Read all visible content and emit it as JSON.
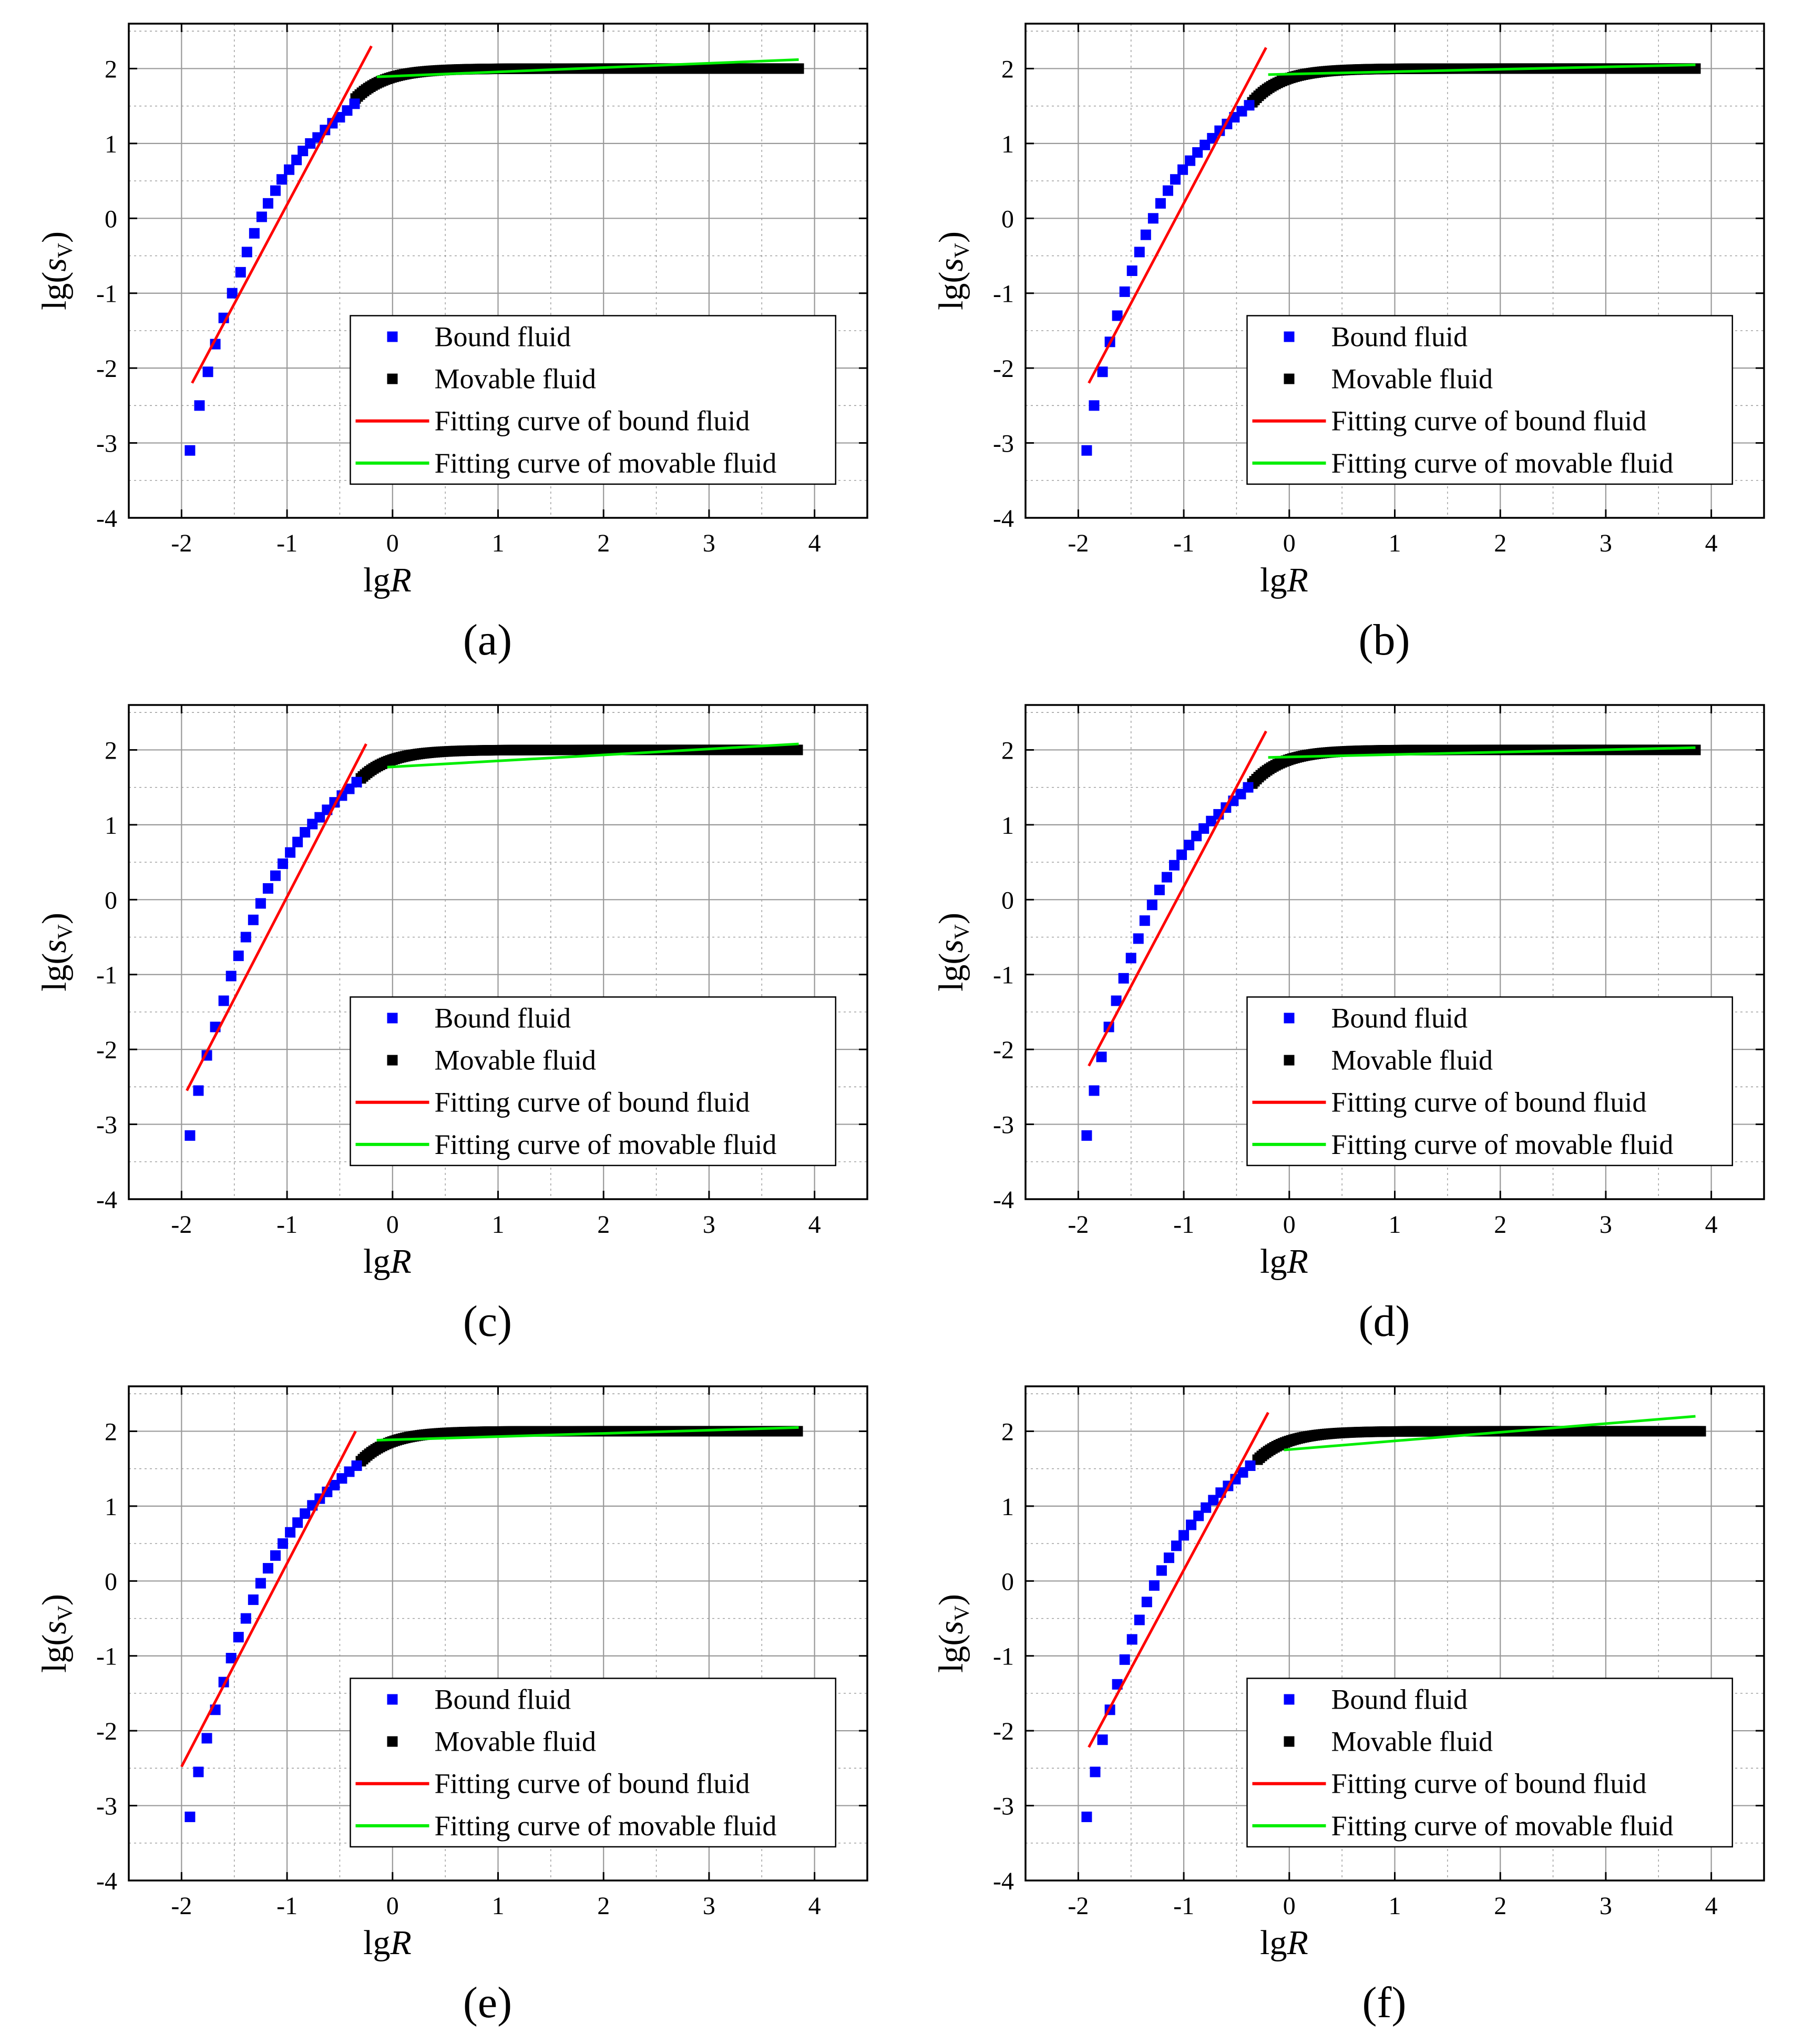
{
  "legend_labels": {
    "bound": "Bound fluid",
    "movable": "Movable fluid",
    "fit_bound": "Fitting curve of bound fluid",
    "fit_movable": "Fitting curve of movable fluid"
  },
  "axis_text": {
    "xlabel_main": "lg",
    "xlabel_ital": "R",
    "ylabel_main": "lg(",
    "ylabel_ital": "s",
    "ylabel_sub": "V",
    "ylabel_close": ")"
  },
  "colors": {
    "bound": "#0000ff",
    "movable": "#000000",
    "fit_bound": "#ff0000",
    "fit_movable": "#00ee00",
    "grid": "#999999",
    "axis": "#000000"
  },
  "chart_data": [
    {
      "type": "scatter",
      "caption": "(a)",
      "xlabel": "lgR",
      "ylabel": "lg(sV)",
      "xlim": [
        -2.5,
        4.5
      ],
      "ylim": [
        -4,
        2.6
      ],
      "xticks": [
        -2,
        -1,
        0,
        1,
        2,
        3,
        4
      ],
      "yticks": [
        -4,
        -3,
        -2,
        -1,
        0,
        1,
        2
      ],
      "grid": true,
      "legend_location": "center-right",
      "series": [
        {
          "name": "Bound fluid",
          "marker": "square",
          "points": [
            [
              -1.92,
              -3.1
            ],
            [
              -1.83,
              -2.5
            ],
            [
              -1.75,
              -2.05
            ],
            [
              -1.68,
              -1.68
            ],
            [
              -1.6,
              -1.33
            ],
            [
              -1.52,
              -1.0
            ],
            [
              -1.44,
              -0.72
            ],
            [
              -1.38,
              -0.45
            ],
            [
              -1.31,
              -0.2
            ],
            [
              -1.24,
              0.02
            ],
            [
              -1.18,
              0.2
            ],
            [
              -1.11,
              0.37
            ],
            [
              -1.05,
              0.52
            ],
            [
              -0.98,
              0.65
            ],
            [
              -0.91,
              0.78
            ],
            [
              -0.85,
              0.9
            ],
            [
              -0.78,
              1.0
            ],
            [
              -0.71,
              1.08
            ],
            [
              -0.64,
              1.18
            ],
            [
              -0.57,
              1.27
            ],
            [
              -0.5,
              1.35
            ],
            [
              -0.43,
              1.44
            ],
            [
              -0.36,
              1.53
            ]
          ]
        },
        {
          "name": "Movable fluid",
          "marker": "square",
          "x_range": [
            -0.35,
            3.85
          ],
          "y_start": 1.6,
          "y_plateau": 2.0
        },
        {
          "name": "Fitting curve of bound fluid",
          "line": [
            [
              -1.9,
              -2.2
            ],
            [
              -0.2,
              2.3
            ]
          ]
        },
        {
          "name": "Fitting curve of movable fluid",
          "line": [
            [
              -0.15,
              1.89
            ],
            [
              3.85,
              2.12
            ]
          ]
        }
      ]
    },
    {
      "type": "scatter",
      "caption": "(b)",
      "xlabel": "lgR",
      "ylabel": "lg(sV)",
      "xlim": [
        -2.5,
        4.5
      ],
      "ylim": [
        -4,
        2.6
      ],
      "xticks": [
        -2,
        -1,
        0,
        1,
        2,
        3,
        4
      ],
      "yticks": [
        -4,
        -3,
        -2,
        -1,
        0,
        1,
        2
      ],
      "grid": true,
      "legend_location": "center-right",
      "series": [
        {
          "name": "Bound fluid",
          "marker": "square",
          "points": [
            [
              -1.92,
              -3.1
            ],
            [
              -1.85,
              -2.5
            ],
            [
              -1.77,
              -2.05
            ],
            [
              -1.7,
              -1.65
            ],
            [
              -1.63,
              -1.3
            ],
            [
              -1.56,
              -0.98
            ],
            [
              -1.49,
              -0.7
            ],
            [
              -1.42,
              -0.45
            ],
            [
              -1.36,
              -0.22
            ],
            [
              -1.29,
              0.0
            ],
            [
              -1.22,
              0.2
            ],
            [
              -1.15,
              0.37
            ],
            [
              -1.08,
              0.52
            ],
            [
              -1.01,
              0.65
            ],
            [
              -0.94,
              0.77
            ],
            [
              -0.87,
              0.88
            ],
            [
              -0.8,
              0.98
            ],
            [
              -0.73,
              1.07
            ],
            [
              -0.66,
              1.17
            ],
            [
              -0.59,
              1.26
            ],
            [
              -0.52,
              1.35
            ],
            [
              -0.45,
              1.43
            ],
            [
              -0.38,
              1.51
            ]
          ]
        },
        {
          "name": "Movable fluid",
          "marker": "square",
          "x_range": [
            -0.35,
            3.85
          ],
          "y_start": 1.55,
          "y_plateau": 2.0
        },
        {
          "name": "Fitting curve of bound fluid",
          "line": [
            [
              -1.9,
              -2.2
            ],
            [
              -0.22,
              2.28
            ]
          ]
        },
        {
          "name": "Fitting curve of movable fluid",
          "line": [
            [
              -0.2,
              1.92
            ],
            [
              3.85,
              2.05
            ]
          ]
        }
      ]
    },
    {
      "type": "scatter",
      "caption": "(c)",
      "xlabel": "lgR",
      "ylabel": "lg(sV)",
      "xlim": [
        -2.5,
        4.5
      ],
      "ylim": [
        -4,
        2.6
      ],
      "xticks": [
        -2,
        -1,
        0,
        1,
        2,
        3,
        4
      ],
      "yticks": [
        -4,
        -3,
        -2,
        -1,
        0,
        1,
        2
      ],
      "grid": true,
      "legend_location": "center-right",
      "series": [
        {
          "name": "Bound fluid",
          "marker": "square",
          "points": [
            [
              -1.92,
              -3.15
            ],
            [
              -1.84,
              -2.55
            ],
            [
              -1.76,
              -2.08
            ],
            [
              -1.68,
              -1.7
            ],
            [
              -1.6,
              -1.35
            ],
            [
              -1.53,
              -1.02
            ],
            [
              -1.46,
              -0.75
            ],
            [
              -1.39,
              -0.5
            ],
            [
              -1.32,
              -0.27
            ],
            [
              -1.25,
              -0.05
            ],
            [
              -1.18,
              0.15
            ],
            [
              -1.11,
              0.32
            ],
            [
              -1.04,
              0.48
            ],
            [
              -0.97,
              0.63
            ],
            [
              -0.9,
              0.77
            ],
            [
              -0.83,
              0.9
            ],
            [
              -0.76,
              1.01
            ],
            [
              -0.69,
              1.1
            ],
            [
              -0.62,
              1.2
            ],
            [
              -0.55,
              1.3
            ],
            [
              -0.48,
              1.39
            ],
            [
              -0.41,
              1.48
            ],
            [
              -0.34,
              1.57
            ]
          ]
        },
        {
          "name": "Movable fluid",
          "marker": "square",
          "x_range": [
            -0.3,
            3.85
          ],
          "y_start": 1.62,
          "y_plateau": 2.0
        },
        {
          "name": "Fitting curve of bound fluid",
          "line": [
            [
              -1.95,
              -2.55
            ],
            [
              -0.25,
              2.08
            ]
          ]
        },
        {
          "name": "Fitting curve of movable fluid",
          "line": [
            [
              -0.05,
              1.77
            ],
            [
              3.85,
              2.08
            ]
          ]
        }
      ]
    },
    {
      "type": "scatter",
      "caption": "(d)",
      "xlabel": "lgR",
      "ylabel": "lg(sV)",
      "xlim": [
        -2.5,
        4.5
      ],
      "ylim": [
        -4,
        2.6
      ],
      "xticks": [
        -2,
        -1,
        0,
        1,
        2,
        3,
        4
      ],
      "yticks": [
        -4,
        -3,
        -2,
        -1,
        0,
        1,
        2
      ],
      "grid": true,
      "legend_location": "center-right",
      "series": [
        {
          "name": "Bound fluid",
          "marker": "square",
          "points": [
            [
              -1.92,
              -3.15
            ],
            [
              -1.85,
              -2.55
            ],
            [
              -1.78,
              -2.1
            ],
            [
              -1.71,
              -1.7
            ],
            [
              -1.64,
              -1.35
            ],
            [
              -1.57,
              -1.05
            ],
            [
              -1.5,
              -0.78
            ],
            [
              -1.43,
              -0.52
            ],
            [
              -1.37,
              -0.28
            ],
            [
              -1.3,
              -0.07
            ],
            [
              -1.23,
              0.13
            ],
            [
              -1.16,
              0.3
            ],
            [
              -1.09,
              0.46
            ],
            [
              -1.02,
              0.6
            ],
            [
              -0.95,
              0.73
            ],
            [
              -0.88,
              0.85
            ],
            [
              -0.81,
              0.95
            ],
            [
              -0.74,
              1.05
            ],
            [
              -0.67,
              1.14
            ],
            [
              -0.6,
              1.23
            ],
            [
              -0.53,
              1.32
            ],
            [
              -0.46,
              1.41
            ],
            [
              -0.39,
              1.5
            ]
          ]
        },
        {
          "name": "Movable fluid",
          "marker": "square",
          "x_range": [
            -0.35,
            3.85
          ],
          "y_start": 1.55,
          "y_plateau": 2.0
        },
        {
          "name": "Fitting curve of bound fluid",
          "line": [
            [
              -1.9,
              -2.22
            ],
            [
              -0.22,
              2.25
            ]
          ]
        },
        {
          "name": "Fitting curve of movable fluid",
          "line": [
            [
              -0.2,
              1.9
            ],
            [
              3.85,
              2.03
            ]
          ]
        }
      ]
    },
    {
      "type": "scatter",
      "caption": "(e)",
      "xlabel": "lgR",
      "ylabel": "lg(sV)",
      "xlim": [
        -2.5,
        4.5
      ],
      "ylim": [
        -4,
        2.6
      ],
      "xticks": [
        -2,
        -1,
        0,
        1,
        2,
        3,
        4
      ],
      "yticks": [
        -4,
        -3,
        -2,
        -1,
        0,
        1,
        2
      ],
      "grid": true,
      "legend_location": "center-right",
      "series": [
        {
          "name": "Bound fluid",
          "marker": "square",
          "points": [
            [
              -1.92,
              -3.15
            ],
            [
              -1.84,
              -2.55
            ],
            [
              -1.76,
              -2.1
            ],
            [
              -1.68,
              -1.72
            ],
            [
              -1.6,
              -1.35
            ],
            [
              -1.53,
              -1.03
            ],
            [
              -1.46,
              -0.75
            ],
            [
              -1.39,
              -0.5
            ],
            [
              -1.32,
              -0.25
            ],
            [
              -1.25,
              -0.03
            ],
            [
              -1.18,
              0.17
            ],
            [
              -1.11,
              0.34
            ],
            [
              -1.04,
              0.5
            ],
            [
              -0.97,
              0.65
            ],
            [
              -0.9,
              0.78
            ],
            [
              -0.83,
              0.9
            ],
            [
              -0.76,
              1.01
            ],
            [
              -0.69,
              1.1
            ],
            [
              -0.62,
              1.19
            ],
            [
              -0.55,
              1.28
            ],
            [
              -0.48,
              1.37
            ],
            [
              -0.41,
              1.46
            ],
            [
              -0.34,
              1.54
            ]
          ]
        },
        {
          "name": "Movable fluid",
          "marker": "square",
          "x_range": [
            -0.3,
            3.85
          ],
          "y_start": 1.6,
          "y_plateau": 2.0
        },
        {
          "name": "Fitting curve of bound fluid",
          "line": [
            [
              -2.0,
              -2.48
            ],
            [
              -0.35,
              2.0
            ]
          ]
        },
        {
          "name": "Fitting curve of movable fluid",
          "line": [
            [
              -0.15,
              1.88
            ],
            [
              3.85,
              2.05
            ]
          ]
        }
      ]
    },
    {
      "type": "scatter",
      "caption": "(f)",
      "xlabel": "lgR",
      "ylabel": "lg(sV)",
      "xlim": [
        -2.5,
        4.5
      ],
      "ylim": [
        -4,
        2.6
      ],
      "xticks": [
        -2,
        -1,
        0,
        1,
        2,
        3,
        4
      ],
      "yticks": [
        -4,
        -3,
        -2,
        -1,
        0,
        1,
        2
      ],
      "grid": true,
      "legend_location": "center-right",
      "series": [
        {
          "name": "Bound fluid",
          "marker": "square",
          "points": [
            [
              -1.92,
              -3.15
            ],
            [
              -1.84,
              -2.55
            ],
            [
              -1.77,
              -2.12
            ],
            [
              -1.7,
              -1.72
            ],
            [
              -1.63,
              -1.38
            ],
            [
              -1.56,
              -1.05
            ],
            [
              -1.49,
              -0.78
            ],
            [
              -1.42,
              -0.52
            ],
            [
              -1.35,
              -0.28
            ],
            [
              -1.28,
              -0.06
            ],
            [
              -1.21,
              0.14
            ],
            [
              -1.14,
              0.31
            ],
            [
              -1.07,
              0.47
            ],
            [
              -1.0,
              0.61
            ],
            [
              -0.93,
              0.75
            ],
            [
              -0.86,
              0.87
            ],
            [
              -0.79,
              0.98
            ],
            [
              -0.72,
              1.08
            ],
            [
              -0.65,
              1.18
            ],
            [
              -0.58,
              1.27
            ],
            [
              -0.51,
              1.36
            ],
            [
              -0.44,
              1.45
            ],
            [
              -0.37,
              1.54
            ]
          ]
        },
        {
          "name": "Movable fluid",
          "marker": "square",
          "x_range": [
            -0.3,
            3.9
          ],
          "y_start": 1.62,
          "y_plateau": 2.0
        },
        {
          "name": "Fitting curve of bound fluid",
          "line": [
            [
              -1.9,
              -2.22
            ],
            [
              -0.2,
              2.25
            ]
          ]
        },
        {
          "name": "Fitting curve of movable fluid",
          "line": [
            [
              -0.05,
              1.75
            ],
            [
              3.85,
              2.2
            ]
          ]
        }
      ]
    }
  ]
}
